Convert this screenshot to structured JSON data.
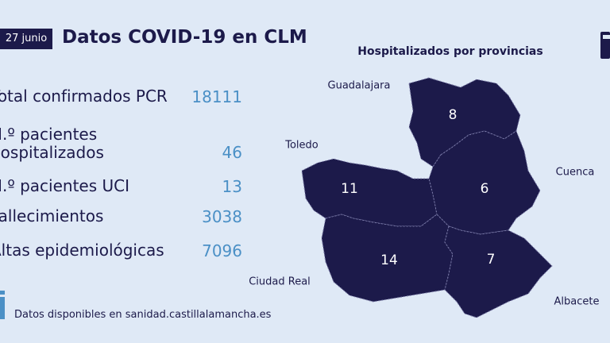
{
  "header": {
    "date": "27 junio",
    "title": "Datos COVID-19 en CLM"
  },
  "stats": [
    {
      "label": "Total confirmados PCR",
      "value": "18111"
    },
    {
      "label": "N.º pacientes hospitalizados",
      "value": "46"
    },
    {
      "label": "N.º pacientes UCI",
      "value": "13"
    },
    {
      "label": "Fallecimientos",
      "value": "3038"
    },
    {
      "label": "Altas epidemiológicas",
      "value": "7096"
    }
  ],
  "map": {
    "title": "Hospitalizados por provincias",
    "provinces": [
      {
        "name": "Guadalajara",
        "value": "8"
      },
      {
        "name": "Cuenca",
        "value": "6"
      },
      {
        "name": "Toledo",
        "value": "11"
      },
      {
        "name": "Ciudad Real",
        "value": "14"
      },
      {
        "name": "Albacete",
        "value": "7"
      }
    ]
  },
  "footer": "Datos disponibles en sanidad.castillalamancha.es"
}
